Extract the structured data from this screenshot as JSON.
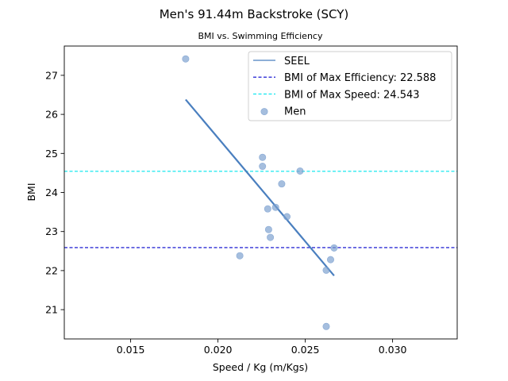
{
  "chart_data": {
    "type": "scatter",
    "title": "Men's 91.44m Backstroke (SCY)",
    "subtitle": "BMI vs. Swimming Efficiency",
    "xlabel": "Speed / Kg (m/Kgs)",
    "ylabel": "BMI",
    "xlim": [
      0.0112,
      0.0337
    ],
    "ylim": [
      20.25,
      27.75
    ],
    "x_ticks": [
      0.015,
      0.02,
      0.025,
      0.03
    ],
    "x_tick_labels": [
      "0.015",
      "0.020",
      "0.025",
      "0.030"
    ],
    "y_ticks": [
      21,
      22,
      23,
      24,
      25,
      26,
      27
    ],
    "y_tick_labels": [
      "21",
      "22",
      "23",
      "24",
      "25",
      "26",
      "27"
    ],
    "grid": false,
    "legend_position": "top-right",
    "series": [
      {
        "name": "Men",
        "kind": "scatter",
        "color": "#7b9fcf",
        "points": [
          {
            "x": 0.01815,
            "y": 27.42
          },
          {
            "x": 0.02255,
            "y": 24.9
          },
          {
            "x": 0.02255,
            "y": 24.67
          },
          {
            "x": 0.0247,
            "y": 24.55
          },
          {
            "x": 0.02365,
            "y": 24.22
          },
          {
            "x": 0.02285,
            "y": 23.58
          },
          {
            "x": 0.0233,
            "y": 23.62
          },
          {
            "x": 0.02395,
            "y": 23.38
          },
          {
            "x": 0.0229,
            "y": 23.05
          },
          {
            "x": 0.023,
            "y": 22.85
          },
          {
            "x": 0.02125,
            "y": 22.38
          },
          {
            "x": 0.02665,
            "y": 22.58
          },
          {
            "x": 0.02645,
            "y": 22.28
          },
          {
            "x": 0.0262,
            "y": 22.01
          },
          {
            "x": 0.0262,
            "y": 20.57
          }
        ]
      },
      {
        "name": "SEEL",
        "kind": "line",
        "color": "#4a7fbf",
        "points": [
          {
            "x": 0.01815,
            "y": 26.38
          },
          {
            "x": 0.02665,
            "y": 21.87
          }
        ]
      },
      {
        "name": "BMI of Max Efficiency: 22.588",
        "kind": "hline",
        "color": "#0000cc",
        "y": 22.588
      },
      {
        "name": "BMI of Max Speed: 24.543",
        "kind": "hline",
        "color": "#00e5ee",
        "y": 24.543
      }
    ]
  }
}
